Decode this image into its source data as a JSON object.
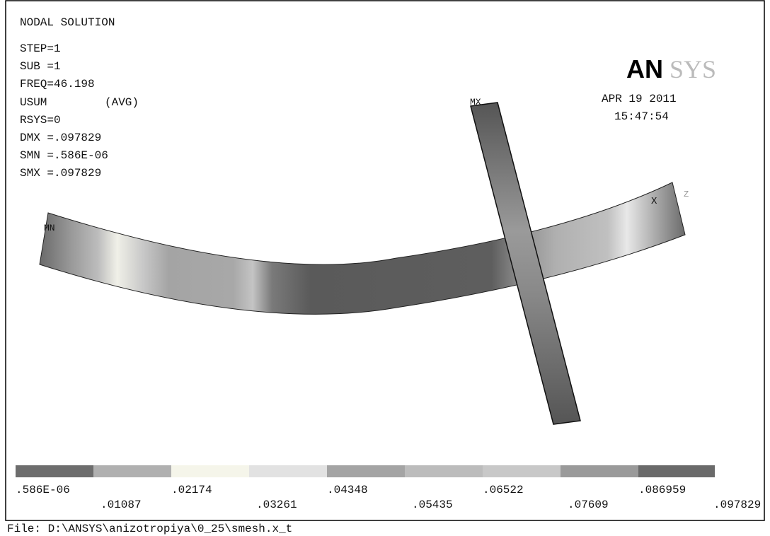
{
  "header": {
    "title": "NODAL SOLUTION",
    "lines": [
      "STEP=1",
      "SUB =1",
      "FREQ=46.198",
      "USUM",
      "(AVG)",
      "RSYS=0",
      "DMX =.097829",
      "SMN =.586E-06",
      "SMX =.097829"
    ]
  },
  "logo": {
    "bold": "AN",
    "light": "SYS"
  },
  "date": "APR 19 2011",
  "time": "15:47:54",
  "labels": {
    "min": "MN",
    "max": "MX",
    "axis_x": "X",
    "axis_z": "Z"
  },
  "legend": {
    "labels": [
      ".586E-06",
      ".01087",
      ".02174",
      ".03261",
      ".04348",
      ".05435",
      ".06522",
      ".07609",
      ".086959",
      ".097829"
    ]
  },
  "file": "File: D:\\ANSYS\\anizotropiya\\0_25\\smesh.x_t"
}
